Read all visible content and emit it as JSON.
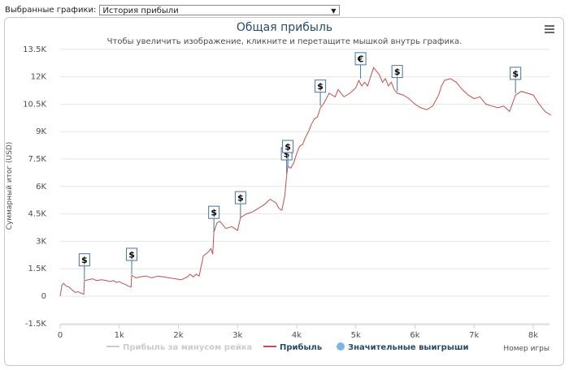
{
  "selector": {
    "label": "Выбранные графики:",
    "value": "История прибыли"
  },
  "menu_icon": "hamburger-menu-icon",
  "colors": {
    "profit_line": "#c0504d",
    "minus_rake_line": "#cccccc",
    "big_win_marker": "#7cb5ec",
    "flag_border": "#4572a7",
    "grid": "#e6e6e6"
  },
  "chart_data": {
    "type": "line",
    "title": "Общая прибыль",
    "subtitle": "Чтобы увеличить изображение, кликните и перетащите мышкой внутрь графика.",
    "ylabel": "Суммарный итог (USD)",
    "xlabel": "Номер игры",
    "xlim": [
      0,
      8300
    ],
    "ylim": [
      -1500,
      13500
    ],
    "x_ticks": [
      0,
      1000,
      2000,
      3000,
      4000,
      5000,
      6000,
      7000,
      8000
    ],
    "x_tick_labels": [
      "0",
      "1k",
      "2k",
      "3k",
      "4k",
      "5k",
      "6k",
      "7k",
      "8k"
    ],
    "y_ticks": [
      -1500,
      0,
      1500,
      3000,
      4500,
      6000,
      7500,
      9000,
      10500,
      12000,
      13500
    ],
    "y_tick_labels": [
      "-1.5K",
      "0",
      "1.5K",
      "3K",
      "4.5K",
      "6K",
      "7.5K",
      "9K",
      "10.5K",
      "12K",
      "13.5K"
    ],
    "legend": {
      "position": "bottom-center",
      "items": [
        "Прибыль за минусом рейка",
        "Прибыль",
        "Значительные выигрыши"
      ]
    },
    "series": [
      {
        "name": "Прибыль",
        "values": [
          [
            0,
            0
          ],
          [
            30,
            600
          ],
          [
            60,
            700
          ],
          [
            100,
            550
          ],
          [
            150,
            500
          ],
          [
            200,
            350
          ],
          [
            260,
            200
          ],
          [
            300,
            250
          ],
          [
            360,
            150
          ],
          [
            400,
            100
          ],
          [
            410,
            850
          ],
          [
            480,
            900
          ],
          [
            550,
            950
          ],
          [
            620,
            850
          ],
          [
            700,
            900
          ],
          [
            780,
            850
          ],
          [
            850,
            800
          ],
          [
            900,
            850
          ],
          [
            950,
            750
          ],
          [
            1000,
            800
          ],
          [
            1050,
            700
          ],
          [
            1100,
            650
          ],
          [
            1150,
            550
          ],
          [
            1200,
            500
          ],
          [
            1210,
            1150
          ],
          [
            1280,
            1000
          ],
          [
            1350,
            1050
          ],
          [
            1450,
            1100
          ],
          [
            1550,
            1000
          ],
          [
            1650,
            1100
          ],
          [
            1750,
            1050
          ],
          [
            1850,
            1000
          ],
          [
            1950,
            950
          ],
          [
            2050,
            900
          ],
          [
            2150,
            1050
          ],
          [
            2200,
            1200
          ],
          [
            2250,
            1050
          ],
          [
            2300,
            1200
          ],
          [
            2350,
            1100
          ],
          [
            2420,
            2200
          ],
          [
            2500,
            2400
          ],
          [
            2550,
            2600
          ],
          [
            2580,
            2300
          ],
          [
            2600,
            3500
          ],
          [
            2650,
            4000
          ],
          [
            2700,
            4100
          ],
          [
            2750,
            3900
          ],
          [
            2800,
            3700
          ],
          [
            2900,
            3800
          ],
          [
            3000,
            3600
          ],
          [
            3050,
            4300
          ],
          [
            3150,
            4500
          ],
          [
            3250,
            4600
          ],
          [
            3350,
            4800
          ],
          [
            3450,
            5000
          ],
          [
            3550,
            5300
          ],
          [
            3650,
            5100
          ],
          [
            3700,
            4800
          ],
          [
            3750,
            4700
          ],
          [
            3800,
            5500
          ],
          [
            3830,
            6600
          ],
          [
            3850,
            7100
          ],
          [
            3900,
            7000
          ],
          [
            3950,
            7300
          ],
          [
            4000,
            7800
          ],
          [
            4050,
            8200
          ],
          [
            4100,
            8300
          ],
          [
            4150,
            8700
          ],
          [
            4200,
            9000
          ],
          [
            4250,
            9400
          ],
          [
            4300,
            9700
          ],
          [
            4350,
            9800
          ],
          [
            4400,
            10300
          ],
          [
            4450,
            10500
          ],
          [
            4500,
            10800
          ],
          [
            4550,
            11100
          ],
          [
            4650,
            10900
          ],
          [
            4700,
            11300
          ],
          [
            4800,
            10900
          ],
          [
            4900,
            11100
          ],
          [
            5000,
            11400
          ],
          [
            5050,
            11800
          ],
          [
            5100,
            11500
          ],
          [
            5150,
            11700
          ],
          [
            5200,
            11500
          ],
          [
            5250,
            12000
          ],
          [
            5300,
            12500
          ],
          [
            5350,
            12300
          ],
          [
            5400,
            12100
          ],
          [
            5450,
            11700
          ],
          [
            5500,
            11900
          ],
          [
            5550,
            11500
          ],
          [
            5600,
            11700
          ],
          [
            5650,
            11300
          ],
          [
            5700,
            11100
          ],
          [
            5800,
            11000
          ],
          [
            5900,
            10800
          ],
          [
            6000,
            10500
          ],
          [
            6100,
            10300
          ],
          [
            6200,
            10200
          ],
          [
            6300,
            10400
          ],
          [
            6400,
            11000
          ],
          [
            6450,
            11500
          ],
          [
            6500,
            11800
          ],
          [
            6600,
            11900
          ],
          [
            6700,
            11700
          ],
          [
            6800,
            11300
          ],
          [
            6900,
            11000
          ],
          [
            7000,
            10800
          ],
          [
            7100,
            10900
          ],
          [
            7200,
            10500
          ],
          [
            7300,
            10400
          ],
          [
            7400,
            10300
          ],
          [
            7500,
            10400
          ],
          [
            7600,
            10100
          ],
          [
            7700,
            11000
          ],
          [
            7800,
            11200
          ],
          [
            7900,
            11100
          ],
          [
            8000,
            11000
          ],
          [
            8100,
            10500
          ],
          [
            8200,
            10100
          ],
          [
            8300,
            9900
          ]
        ]
      }
    ],
    "big_wins": [
      {
        "x": 410,
        "y": 900,
        "symbol": "$"
      },
      {
        "x": 1210,
        "y": 1200,
        "symbol": "$"
      },
      {
        "x": 2600,
        "y": 3500,
        "symbol": "$"
      },
      {
        "x": 3050,
        "y": 4300,
        "symbol": "$"
      },
      {
        "x": 3830,
        "y": 6700,
        "symbol": "$"
      },
      {
        "x": 3850,
        "y": 7100,
        "symbol": "$"
      },
      {
        "x": 4400,
        "y": 10400,
        "symbol": "$"
      },
      {
        "x": 5080,
        "y": 11900,
        "symbol": "€"
      },
      {
        "x": 5700,
        "y": 11200,
        "symbol": "$"
      },
      {
        "x": 7700,
        "y": 11100,
        "symbol": "$"
      }
    ]
  }
}
